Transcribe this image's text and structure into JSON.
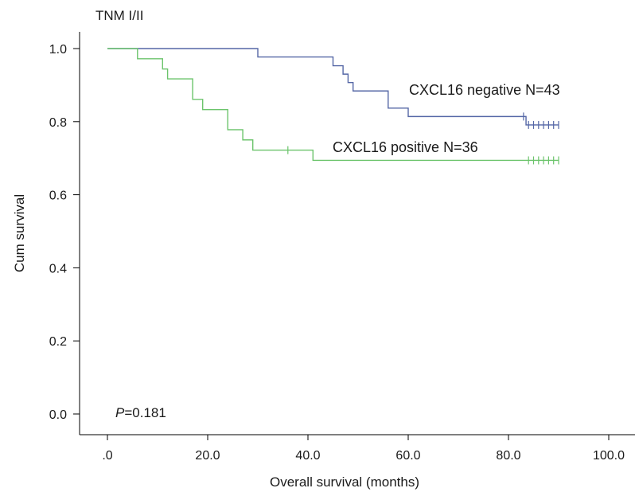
{
  "chart_data": {
    "type": "line",
    "subtype": "kaplan-meier-step",
    "title": "TNM I/II",
    "xlabel": "Overall survival (months)",
    "ylabel": "Cum survival",
    "xlim": [
      -3,
      108
    ],
    "ylim": [
      -0.04,
      1.04
    ],
    "x_ticks": [
      0,
      20,
      40,
      60,
      80,
      100
    ],
    "x_tick_labels": [
      ".0",
      "20.0",
      "40.0",
      "60.0",
      "80.0",
      "100.0"
    ],
    "y_ticks": [
      0,
      0.2,
      0.4,
      0.6,
      0.8,
      1.0
    ],
    "y_tick_labels": [
      "0.0",
      "0.2",
      "0.4",
      "0.6",
      "0.8",
      "1.0"
    ],
    "grid": false,
    "p_value": {
      "prefix": "P",
      "text": "=0.181"
    },
    "series": [
      {
        "name": "CXCL16 negative N=43",
        "color": "#5567a6",
        "steps": [
          [
            0,
            1.0
          ],
          [
            30,
            0.977
          ],
          [
            45,
            0.953
          ],
          [
            47,
            0.93
          ],
          [
            48,
            0.907
          ],
          [
            49,
            0.884
          ],
          [
            56,
            0.837
          ],
          [
            60,
            0.814
          ],
          [
            83.5,
            0.791
          ],
          [
            90,
            0.791
          ]
        ],
        "censored": [
          [
            83,
            0.814
          ],
          [
            84,
            0.791
          ],
          [
            85,
            0.791
          ],
          [
            86,
            0.791
          ],
          [
            87,
            0.791
          ],
          [
            88,
            0.791
          ],
          [
            89,
            0.791
          ],
          [
            90,
            0.791
          ]
        ]
      },
      {
        "name": "CXCL16 positive N=36",
        "color": "#6cc46c",
        "steps": [
          [
            0,
            1.0
          ],
          [
            6,
            0.972
          ],
          [
            11,
            0.944
          ],
          [
            12,
            0.917
          ],
          [
            17,
            0.861
          ],
          [
            19,
            0.833
          ],
          [
            24,
            0.778
          ],
          [
            27,
            0.75
          ],
          [
            29,
            0.722
          ],
          [
            41,
            0.694
          ],
          [
            90,
            0.694
          ]
        ],
        "censored": [
          [
            36,
            0.722
          ],
          [
            84,
            0.694
          ],
          [
            85,
            0.694
          ],
          [
            86,
            0.694
          ],
          [
            87,
            0.694
          ],
          [
            88,
            0.694
          ],
          [
            89,
            0.694
          ],
          [
            90,
            0.694
          ]
        ]
      }
    ]
  }
}
